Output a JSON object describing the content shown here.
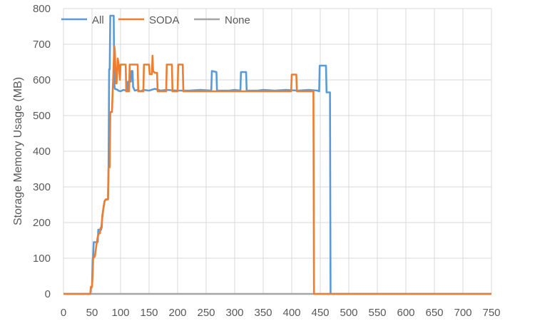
{
  "chart_data": {
    "type": "line",
    "title": "",
    "xlabel": "",
    "ylabel": "Storage Memory Usage (MB)",
    "xlim": [
      0,
      750
    ],
    "ylim": [
      0,
      800
    ],
    "xticks": [
      0,
      50,
      100,
      150,
      200,
      250,
      300,
      350,
      400,
      450,
      500,
      550,
      600,
      650,
      700,
      750
    ],
    "yticks": [
      0,
      100,
      200,
      300,
      400,
      500,
      600,
      700,
      800
    ],
    "grid": true,
    "legend_position": "top-left",
    "series": [
      {
        "name": "All",
        "color": "#5B9BD5",
        "points": [
          [
            0,
            0
          ],
          [
            47,
            0
          ],
          [
            48,
            15
          ],
          [
            50,
            20
          ],
          [
            51,
            95
          ],
          [
            52,
            105
          ],
          [
            53,
            145
          ],
          [
            56,
            145
          ],
          [
            57,
            145
          ],
          [
            60,
            145
          ],
          [
            61,
            180
          ],
          [
            65,
            180
          ],
          [
            66,
            180
          ],
          [
            68,
            215
          ],
          [
            70,
            240
          ],
          [
            72,
            260
          ],
          [
            75,
            265
          ],
          [
            78,
            265
          ],
          [
            79,
            360
          ],
          [
            80,
            630
          ],
          [
            81,
            630
          ],
          [
            82,
            780
          ],
          [
            88,
            780
          ],
          [
            89,
            590
          ],
          [
            90,
            575
          ],
          [
            95,
            572
          ],
          [
            96,
            570
          ],
          [
            100,
            568
          ],
          [
            105,
            572
          ],
          [
            110,
            570
          ],
          [
            112,
            570
          ],
          [
            113,
            595
          ],
          [
            118,
            595
          ],
          [
            119,
            625
          ],
          [
            121,
            625
          ],
          [
            122,
            580
          ],
          [
            125,
            570
          ],
          [
            130,
            572
          ],
          [
            135,
            568
          ],
          [
            140,
            572
          ],
          [
            150,
            570
          ],
          [
            160,
            575
          ],
          [
            170,
            570
          ],
          [
            180,
            572
          ],
          [
            200,
            570
          ],
          [
            220,
            570
          ],
          [
            240,
            572
          ],
          [
            259,
            570
          ],
          [
            260,
            625
          ],
          [
            268,
            622
          ],
          [
            269,
            570
          ],
          [
            290,
            570
          ],
          [
            300,
            572
          ],
          [
            310,
            570
          ],
          [
            311,
            622
          ],
          [
            320,
            622
          ],
          [
            321,
            570
          ],
          [
            340,
            570
          ],
          [
            350,
            572
          ],
          [
            370,
            570
          ],
          [
            390,
            572
          ],
          [
            410,
            570
          ],
          [
            430,
            572
          ],
          [
            445,
            570
          ],
          [
            448,
            568
          ],
          [
            449,
            640
          ],
          [
            460,
            640
          ],
          [
            461,
            565
          ],
          [
            467,
            565
          ],
          [
            468,
            0
          ],
          [
            750,
            0
          ]
        ]
      },
      {
        "name": "SODA",
        "color": "#ED7D31",
        "points": [
          [
            0,
            0
          ],
          [
            47,
            0
          ],
          [
            48,
            20
          ],
          [
            50,
            20
          ],
          [
            51,
            50
          ],
          [
            52,
            100
          ],
          [
            55,
            105
          ],
          [
            58,
            140
          ],
          [
            60,
            160
          ],
          [
            62,
            170
          ],
          [
            64,
            170
          ],
          [
            65,
            185
          ],
          [
            67,
            185
          ],
          [
            68,
            220
          ],
          [
            70,
            240
          ],
          [
            72,
            260
          ],
          [
            74,
            265
          ],
          [
            78,
            265
          ],
          [
            79,
            355
          ],
          [
            81,
            355
          ],
          [
            82,
            510
          ],
          [
            85,
            510
          ],
          [
            86,
            560
          ],
          [
            87,
            600
          ],
          [
            89,
            695
          ],
          [
            90,
            680
          ],
          [
            92,
            590
          ],
          [
            93,
            590
          ],
          [
            94,
            620
          ],
          [
            95,
            660
          ],
          [
            97,
            640
          ],
          [
            99,
            600
          ],
          [
            100,
            643
          ],
          [
            109,
            643
          ],
          [
            110,
            568
          ],
          [
            115,
            568
          ],
          [
            116,
            643
          ],
          [
            130,
            643
          ],
          [
            131,
            568
          ],
          [
            140,
            568
          ],
          [
            141,
            643
          ],
          [
            150,
            643
          ],
          [
            151,
            616
          ],
          [
            155,
            616
          ],
          [
            156,
            668
          ],
          [
            157,
            625
          ],
          [
            160,
            620
          ],
          [
            164,
            620
          ],
          [
            165,
            568
          ],
          [
            180,
            568
          ],
          [
            181,
            643
          ],
          [
            190,
            643
          ],
          [
            191,
            568
          ],
          [
            200,
            568
          ],
          [
            201,
            643
          ],
          [
            209,
            643
          ],
          [
            210,
            568
          ],
          [
            240,
            568
          ],
          [
            270,
            568
          ],
          [
            300,
            568
          ],
          [
            330,
            568
          ],
          [
            360,
            568
          ],
          [
            399,
            568
          ],
          [
            400,
            615
          ],
          [
            408,
            615
          ],
          [
            409,
            568
          ],
          [
            420,
            568
          ],
          [
            438,
            568
          ],
          [
            439,
            0
          ],
          [
            750,
            0
          ]
        ]
      },
      {
        "name": "None",
        "color": "#A5A5A5",
        "points": [
          [
            0,
            0
          ],
          [
            750,
            0
          ]
        ]
      }
    ]
  }
}
